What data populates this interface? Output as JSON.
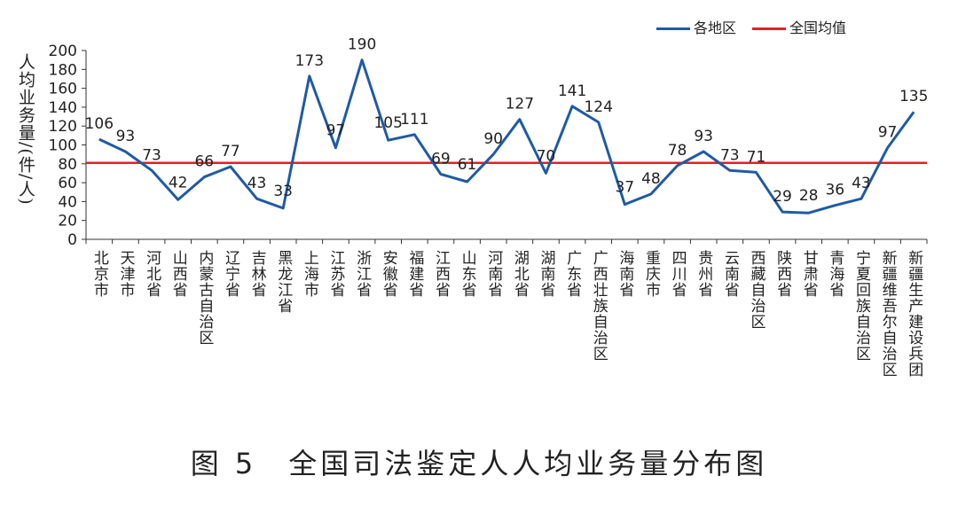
{
  "chart_data": {
    "type": "line",
    "caption": "图 5　全国司法鉴定人人均业务量分布图",
    "ylabel": "人均业务量/(件/人)",
    "ylim": [
      0,
      200
    ],
    "yticks": [
      0,
      20,
      40,
      60,
      80,
      100,
      120,
      140,
      160,
      180,
      200
    ],
    "legend_position": "top-right",
    "categories": [
      "北京市",
      "天津市",
      "河北省",
      "山西省",
      "内蒙古自治区",
      "辽宁省",
      "吉林省",
      "黑龙江省",
      "上海市",
      "江苏省",
      "浙江省",
      "安徽省",
      "福建省",
      "江西省",
      "山东省",
      "河南省",
      "湖北省",
      "湖南省",
      "广东省",
      "广西壮族自治区",
      "海南省",
      "重庆市",
      "四川省",
      "贵州省",
      "云南省",
      "西藏自治区",
      "陕西省",
      "甘肃省",
      "青海省",
      "宁夏回族自治区",
      "新疆维吾尔自治区",
      "新疆生产建设兵团"
    ],
    "series": [
      {
        "name": "各地区",
        "color": "#1f5aa6",
        "values": [
          106,
          93,
          73,
          42,
          66,
          77,
          43,
          33,
          173,
          97,
          190,
          105,
          111,
          69,
          61,
          90,
          127,
          70,
          141,
          124,
          37,
          48,
          78,
          93,
          73,
          71,
          29,
          28,
          36,
          43,
          97,
          135
        ]
      },
      {
        "name": "全国均值",
        "color": "#e0202a",
        "value": 81
      }
    ]
  }
}
